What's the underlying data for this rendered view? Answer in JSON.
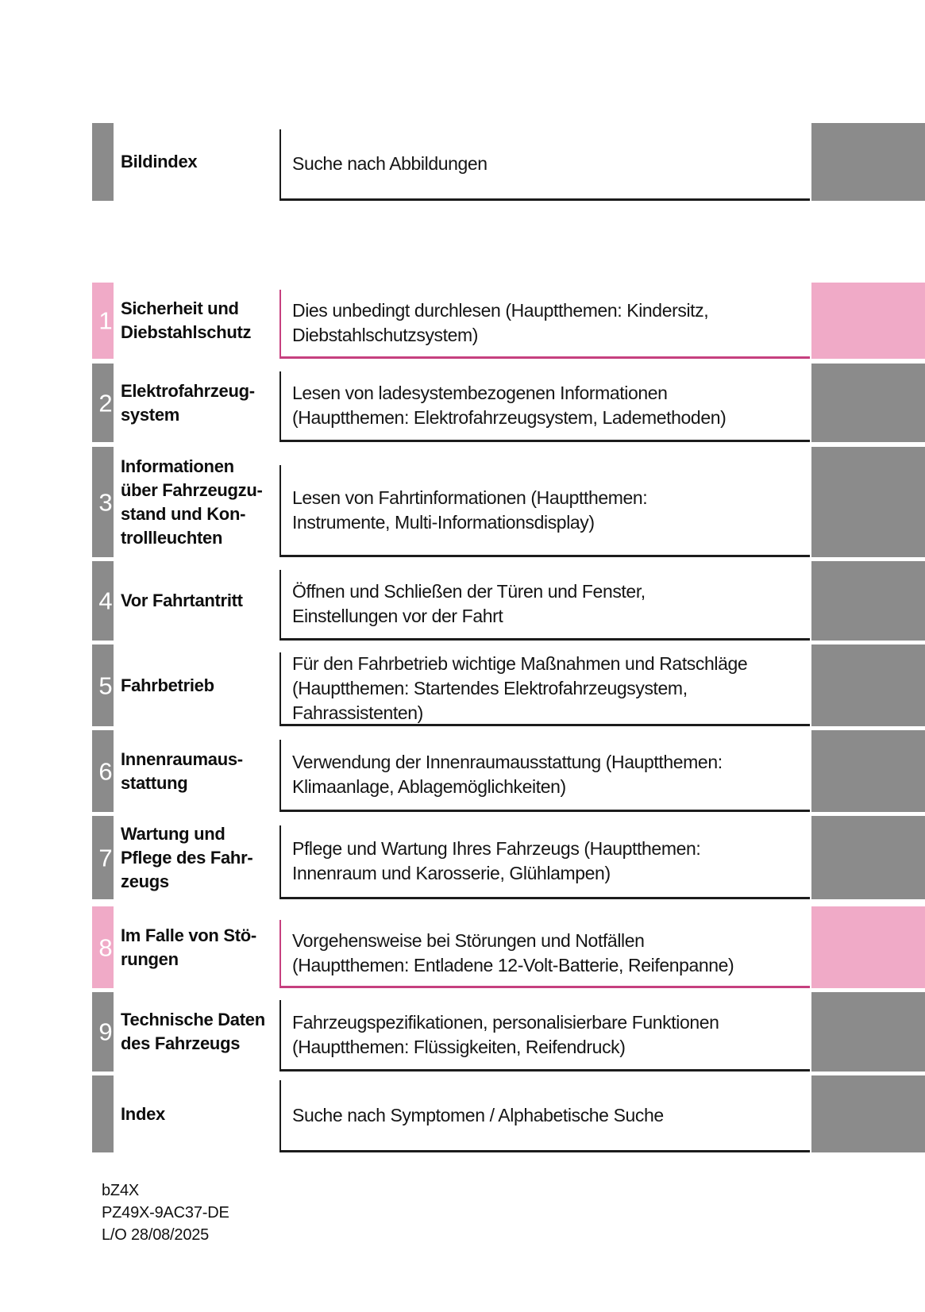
{
  "sections": [
    {
      "number": "",
      "label": "Bildindex",
      "description": "Suche nach Abbildungen",
      "scheme": "gray"
    },
    {
      "number": "1",
      "label": "Sicherheit und\nDiebstahlschutz",
      "description": "Dies unbedingt durchlesen (Hauptthemen: Kindersitz,\nDiebstahlschutzsystem)",
      "scheme": "pink"
    },
    {
      "number": "2",
      "label": "Elektrofahrzeug-\nsystem",
      "description": "Lesen von ladesystembezogenen Informationen\n(Hauptthemen: Elektrofahrzeugsystem, Lademethoden)",
      "scheme": "gray"
    },
    {
      "number": "3",
      "label": "Informationen\nüber Fahrzeugzu-\nstand und Kon-\ntrollleuchten",
      "description": "Lesen von Fahrtinformationen (Hauptthemen:\nInstrumente, Multi-Informationsdisplay)",
      "scheme": "gray"
    },
    {
      "number": "4",
      "label": "Vor Fahrtantritt",
      "description": "Öffnen und Schließen der Türen und Fenster,\nEinstellungen vor der Fahrt",
      "scheme": "gray"
    },
    {
      "number": "5",
      "label": "Fahrbetrieb",
      "description": "Für den Fahrbetrieb wichtige Maßnahmen und Ratschläge\n(Hauptthemen: Startendes Elektrofahrzeugsystem,\nFahrassistenten)",
      "scheme": "gray"
    },
    {
      "number": "6",
      "label": "Innenraumaus-\nstattung",
      "description": "Verwendung der Innenraumausstattung (Hauptthemen:\nKlimaanlage, Ablagemöglichkeiten)",
      "scheme": "gray"
    },
    {
      "number": "7",
      "label": "Wartung und\nPflege des Fahr-\nzeugs",
      "description": "Pflege und Wartung Ihres Fahrzeugs (Hauptthemen:\nInnenraum und Karosserie, Glühlampen)",
      "scheme": "gray"
    },
    {
      "number": "8",
      "label": "Im Falle von Stö-\nrungen",
      "description": "Vorgehensweise bei Störungen und Notfällen\n(Hauptthemen: Entladene 12-Volt-Batterie, Reifenpanne)",
      "scheme": "pink"
    },
    {
      "number": "9",
      "label": "Technische Daten\ndes Fahrzeugs",
      "description": "Fahrzeugspezifikationen, personalisierbare Funktionen\n(Hauptthemen: Flüssigkeiten, Reifendruck)",
      "scheme": "gray"
    },
    {
      "number": "",
      "label": "Index",
      "description": "Suche nach Symptomen / Alphabetische Suche",
      "scheme": "gray"
    }
  ],
  "footer": {
    "model": "bZ4X",
    "publication_number": "PZ49X-9AC37-DE",
    "layout_date": "L/O 28/08/2025"
  },
  "colors": {
    "tab_gray": "#8b8b8b",
    "tab_pink": "#f0aac7",
    "border_pink": "#c6407f",
    "border_black": "#1c1c1c"
  }
}
